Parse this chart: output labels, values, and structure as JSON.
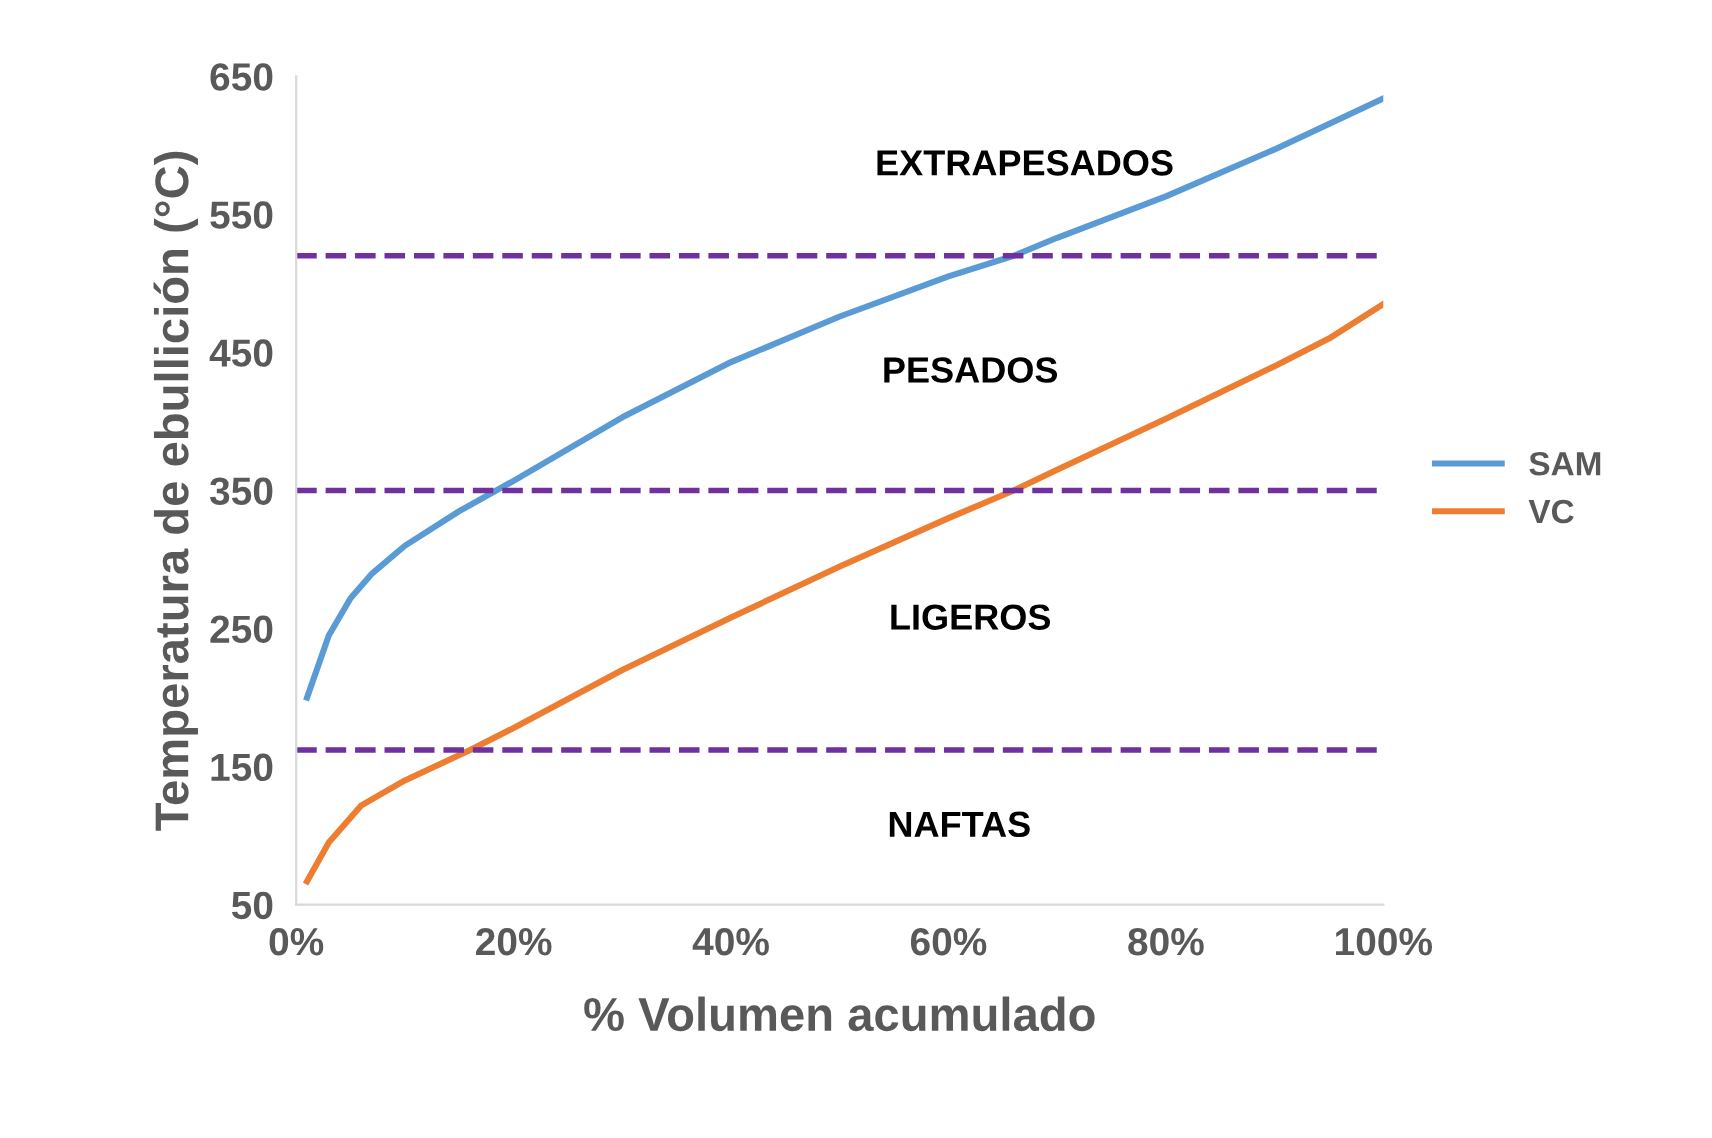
{
  "chart_data": {
    "type": "line",
    "xlabel": "% Volumen acumulado",
    "ylabel": "Temperatura de ebullición (°C)",
    "series": [
      {
        "name": "SAM",
        "color": "#5b9bd5",
        "x": [
          1,
          3,
          5,
          7,
          10,
          15,
          20,
          30,
          40,
          50,
          60,
          66,
          70,
          80,
          90,
          100
        ],
        "values": [
          200,
          245,
          272,
          290,
          310,
          335,
          357,
          403,
          443,
          476,
          505,
          520,
          533,
          563,
          597,
          634
        ]
      },
      {
        "name": "VC",
        "color": "#ed7d31",
        "x": [
          1,
          3,
          6,
          10,
          16,
          20,
          30,
          40,
          50,
          60,
          66,
          70,
          80,
          90,
          95,
          100
        ],
        "values": [
          67,
          95,
          122,
          140,
          162,
          178,
          220,
          258,
          295,
          330,
          350,
          365,
          402,
          440,
          460,
          485
        ]
      }
    ],
    "xlim": [
      0,
      100
    ],
    "xticks": [
      {
        "value": 0,
        "label": "0%"
      },
      {
        "value": 20,
        "label": "20%"
      },
      {
        "value": 40,
        "label": "40%"
      },
      {
        "value": 60,
        "label": "60%"
      },
      {
        "value": 80,
        "label": "80%"
      },
      {
        "value": 100,
        "label": "100%"
      }
    ],
    "ylim": [
      50,
      650
    ],
    "yticks": [
      50,
      150,
      250,
      350,
      450,
      550,
      650
    ],
    "ref_lines": [
      {
        "axis": "y",
        "value": 520,
        "color": "#7030a0",
        "line_style": "dashed"
      },
      {
        "axis": "y",
        "value": 350,
        "color": "#7030a0",
        "line_style": "dashed"
      },
      {
        "axis": "y",
        "value": 162,
        "color": "#7030a0",
        "line_style": "dashed"
      }
    ],
    "annotations": [
      "EXTRAPESADOS",
      "PESADOS",
      "LIGEROS",
      "NAFTAS"
    ],
    "legend": "right",
    "grid": false,
    "marker": "none",
    "line_style": "solid"
  }
}
